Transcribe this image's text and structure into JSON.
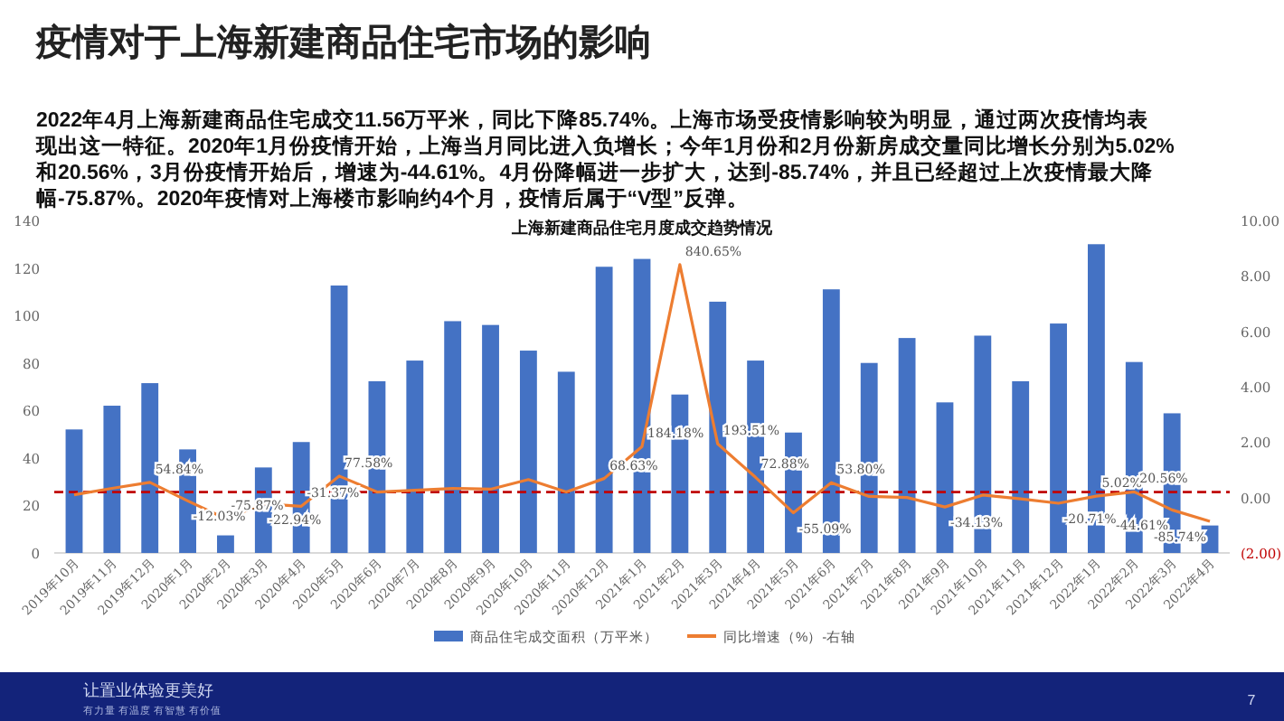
{
  "chart_data": {
    "type": "bar",
    "title": "疫情对于上海新建商品住宅市场的影响",
    "subtitle": "上海新建商品住宅月度成交趋势情况",
    "annotations": [
      "2022年4月上海新建商品住宅成交11.56万平米，同比下降85.74%。上海市场受疫情影响较为明显，通过两次疫情均表现出这一特征。2020年1月份疫情开始，上海当月同比进入负增长；今年1月份和2月份新房成交量同比增长分别为5.02%和20.56%，3月份疫情开始后，增速为-44.61%。4月份降幅进一步扩大，达到-85.74%，并且已经超过上次疫情最大降幅-75.87%。2020年疫情对上海楼市影响约4个月，疫情后属于“V型”反弹。",
      "让置业体验更美好",
      "有力量 有温度 有智慧 有价值",
      "7"
    ],
    "categories": [
      "2019年10月",
      "2019年11月",
      "2019年12月",
      "2020年1月",
      "2020年2月",
      "2020年3月",
      "2020年4月",
      "2020年5月",
      "2020年6月",
      "2020年7月",
      "2020年8月",
      "2020年9月",
      "2020年10月",
      "2020年11月",
      "2020年12月",
      "2021年1月",
      "2021年2月",
      "2021年3月",
      "2021年4月",
      "2021年5月",
      "2021年6月",
      "2021年7月",
      "2021年8月",
      "2021年9月",
      "2021年10月",
      "2021年11月",
      "2021年12月",
      "2022年1月",
      "2022年2月",
      "2022年3月",
      "2022年4月"
    ],
    "series": [
      {
        "name": "商品住宅成交面积（万平米）",
        "color": "#4472c4",
        "values": [
          52,
          62,
          71.5,
          43.6,
          7.4,
          36,
          46.7,
          112.6,
          72.3,
          81,
          97.6,
          96,
          85.2,
          76.3,
          120.5,
          123.8,
          66.7,
          105.8,
          81,
          50.7,
          111,
          80,
          90.5,
          63.4,
          91.5,
          72.3,
          96.6,
          130,
          80.4,
          58.8,
          11.56
        ]
      },
      {
        "name": "同比增速（%）-右轴",
        "type": "line",
        "axis": "y2",
        "color": "#ed7d31",
        "values": [
          0.1,
          0.33,
          0.5484,
          -0.1203,
          -0.7587,
          -0.2294,
          -0.3137,
          0.7758,
          0.2,
          0.26,
          0.33,
          0.3,
          0.65,
          0.2,
          0.6863,
          1.8418,
          8.4065,
          1.9351,
          0.7288,
          -0.5509,
          0.538,
          0.04,
          0,
          -0.3413,
          0.09,
          -0.05,
          -0.2071,
          0.0502,
          0.2056,
          -0.4461,
          -0.8574
        ],
        "value_labels": [
          null,
          null,
          "54.84%",
          "-12.03%",
          "-75.87%",
          "-22.94%",
          "-31.37%",
          "77.58%",
          null,
          null,
          null,
          null,
          null,
          null,
          "68.63%",
          "184.18%",
          "840.65%",
          "193.51%",
          "72.88%",
          "-55.09%",
          "53.80%",
          null,
          null,
          "-34.13%",
          null,
          null,
          "-20.71%",
          "5.02%",
          "20.56%",
          "-44.61%",
          "-85.74%"
        ]
      }
    ],
    "ylim": [
      0,
      140
    ],
    "yticks": [
      0,
      20,
      40,
      60,
      80,
      100,
      120,
      140
    ],
    "y2lim": [
      -2,
      10
    ],
    "y2ticks": [
      {
        "value": -2,
        "label": "(2.00)"
      },
      {
        "value": 0,
        "label": "0.00"
      },
      {
        "value": 2,
        "label": "2.00"
      },
      {
        "value": 4,
        "label": "4.00"
      },
      {
        "value": 6,
        "label": "6.00"
      },
      {
        "value": 8,
        "label": "8.00"
      },
      {
        "value": 10,
        "label": "10.00"
      }
    ],
    "ref_lines": [
      {
        "axis": "y2",
        "value": 0.2,
        "color": "#c00000",
        "line_style": "dashed"
      }
    ],
    "legend": "bottom",
    "marker": "none"
  }
}
